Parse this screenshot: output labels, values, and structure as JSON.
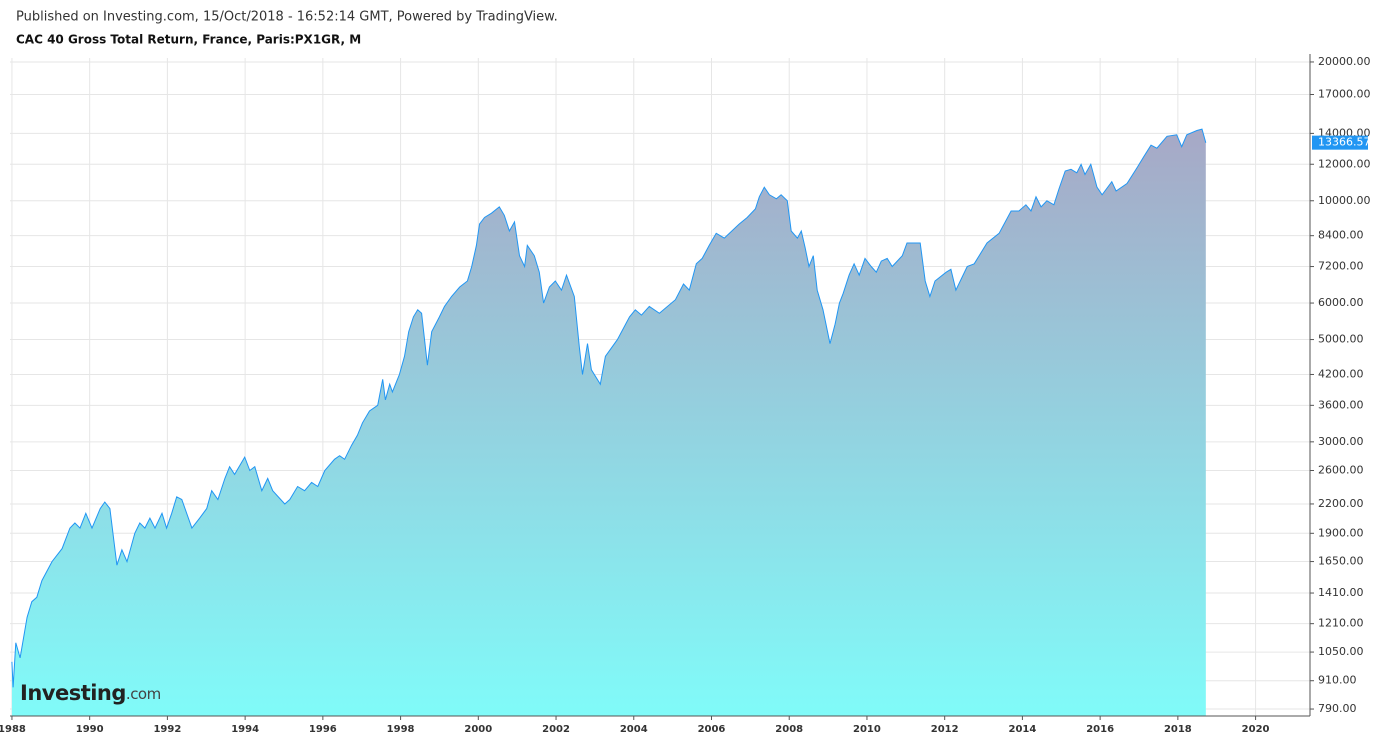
{
  "header": {
    "published": "Published on Investing.com, 15/Oct/2018 - 16:52:14 GMT, Powered by TradingView.",
    "title": "CAC 40 Gross Total Return, France, Paris:PX1GR, M"
  },
  "watermark": {
    "brand": "Investing",
    "suffix": ".com"
  },
  "chart_data": {
    "type": "area",
    "title": "CAC 40 Gross Total Return, France, Paris:PX1GR, M",
    "x": [
      1988.0,
      1988.03,
      1988.1,
      1988.21,
      1988.39,
      1988.51,
      1988.64,
      1988.77,
      1989.03,
      1989.29,
      1989.49,
      1989.62,
      1989.75,
      1989.9,
      1990.06,
      1990.27,
      1990.39,
      1990.52,
      1990.7,
      1990.83,
      1990.96,
      1991.16,
      1991.29,
      1991.42,
      1991.55,
      1991.68,
      1991.86,
      1991.98,
      1992.11,
      1992.24,
      1992.37,
      1992.63,
      1992.83,
      1993.01,
      1993.14,
      1993.3,
      1993.48,
      1993.6,
      1993.73,
      1993.99,
      1994.12,
      1994.25,
      1994.43,
      1994.58,
      1994.71,
      1995.02,
      1995.15,
      1995.35,
      1995.53,
      1995.71,
      1995.87,
      1996.05,
      1996.3,
      1996.43,
      1996.56,
      1996.74,
      1996.89,
      1997.02,
      1997.2,
      1997.41,
      1997.54,
      1997.61,
      1997.72,
      1997.79,
      1997.97,
      1998.1,
      1998.21,
      1998.33,
      1998.44,
      1998.54,
      1998.69,
      1998.8,
      1999.0,
      1999.13,
      1999.31,
      1999.52,
      1999.72,
      1999.83,
      1999.95,
      2000.03,
      2000.16,
      2000.34,
      2000.54,
      2000.67,
      2000.8,
      2000.93,
      2001.06,
      2001.19,
      2001.26,
      2001.44,
      2001.57,
      2001.68,
      2001.83,
      2001.98,
      2002.14,
      2002.27,
      2002.47,
      2002.6,
      2002.68,
      2002.81,
      2002.91,
      2003.14,
      2003.27,
      2003.58,
      2003.89,
      2004.04,
      2004.2,
      2004.4,
      2004.66,
      2005.07,
      2005.28,
      2005.43,
      2005.61,
      2005.76,
      2005.94,
      2006.12,
      2006.33,
      2006.71,
      2006.92,
      2007.13,
      2007.23,
      2007.36,
      2007.49,
      2007.67,
      2007.79,
      2007.95,
      2008.05,
      2008.21,
      2008.31,
      2008.41,
      2008.51,
      2008.62,
      2008.72,
      2008.87,
      2009.05,
      2009.18,
      2009.29,
      2009.39,
      2009.54,
      2009.67,
      2009.8,
      2009.95,
      2010.11,
      2010.24,
      2010.37,
      2010.52,
      2010.65,
      2010.91,
      2011.03,
      2011.37,
      2011.5,
      2011.62,
      2011.75,
      2012.04,
      2012.16,
      2012.29,
      2012.58,
      2012.76,
      2013.09,
      2013.4,
      2013.71,
      2013.91,
      2014.09,
      2014.22,
      2014.35,
      2014.48,
      2014.63,
      2014.81,
      2014.94,
      2015.1,
      2015.25,
      2015.4,
      2015.51,
      2015.61,
      2015.76,
      2015.92,
      2016.05,
      2016.3,
      2016.41,
      2016.69,
      2016.95,
      2017.13,
      2017.31,
      2017.46,
      2017.72,
      2017.97,
      2018.1,
      2018.23,
      2018.49,
      2018.62,
      2018.72
    ],
    "values": [
      1000,
      880,
      1100,
      1020,
      1250,
      1350,
      1380,
      1500,
      1650,
      1760,
      1950,
      2000,
      1950,
      2100,
      1950,
      2150,
      2220,
      2150,
      1620,
      1750,
      1650,
      1900,
      2000,
      1950,
      2050,
      1950,
      2100,
      1950,
      2100,
      2280,
      2250,
      1950,
      2050,
      2150,
      2350,
      2250,
      2500,
      2650,
      2550,
      2780,
      2600,
      2650,
      2350,
      2500,
      2350,
      2200,
      2250,
      2400,
      2350,
      2450,
      2400,
      2600,
      2750,
      2800,
      2750,
      2950,
      3100,
      3300,
      3500,
      3600,
      4100,
      3700,
      4000,
      3850,
      4200,
      4600,
      5200,
      5600,
      5800,
      5700,
      4400,
      5200,
      5600,
      5900,
      6200,
      6500,
      6700,
      7200,
      8000,
      8900,
      9200,
      9400,
      9700,
      9300,
      8600,
      9000,
      7600,
      7200,
      8000,
      7600,
      7000,
      6000,
      6500,
      6700,
      6400,
      6900,
      6200,
      4800,
      4200,
      4900,
      4300,
      4000,
      4600,
      5000,
      5600,
      5800,
      5650,
      5900,
      5700,
      6100,
      6600,
      6400,
      7300,
      7500,
      8000,
      8500,
      8300,
      8900,
      9200,
      9600,
      10200,
      10700,
      10300,
      10100,
      10300,
      10000,
      8600,
      8300,
      8600,
      7900,
      7200,
      7600,
      6400,
      5800,
      4900,
      5400,
      6000,
      6300,
      6900,
      7300,
      6900,
      7500,
      7200,
      7000,
      7400,
      7500,
      7200,
      7600,
      8100,
      8100,
      6700,
      6200,
      6700,
      7000,
      7100,
      6400,
      7200,
      7300,
      8100,
      8500,
      9500,
      9500,
      9800,
      9500,
      10200,
      9700,
      10000,
      9800,
      10600,
      11600,
      11700,
      11500,
      12000,
      11400,
      12000,
      10700,
      10300,
      11000,
      10500,
      10900,
      11800,
      12500,
      13200,
      13000,
      13800,
      13900,
      13100,
      13900,
      14200,
      14300,
      13366.57
    ],
    "color": "#2196f3",
    "fill_top": "#a7a8c6",
    "fill_bottom": "#80fbf9",
    "log_scale": true,
    "grid": true,
    "xlim": [
      1987.95,
      2021.4
    ],
    "xticks": [
      1988,
      1990,
      1992,
      1994,
      1996,
      1998,
      2000,
      2002,
      2004,
      2006,
      2008,
      2010,
      2012,
      2014,
      2016,
      2018,
      2020
    ],
    "ylim": [
      763,
      20400
    ],
    "yticks": [
      {
        "value": 790,
        "label": "790.00"
      },
      {
        "value": 910,
        "label": "910.00"
      },
      {
        "value": 1050,
        "label": "1050.00"
      },
      {
        "value": 1210,
        "label": "1210.00"
      },
      {
        "value": 1410,
        "label": "1410.00"
      },
      {
        "value": 1650,
        "label": "1650.00"
      },
      {
        "value": 1900,
        "label": "1900.00"
      },
      {
        "value": 2200,
        "label": "2200.00"
      },
      {
        "value": 2600,
        "label": "2600.00"
      },
      {
        "value": 3000,
        "label": "3000.00"
      },
      {
        "value": 3600,
        "label": "3600.00"
      },
      {
        "value": 4200,
        "label": "4200.00"
      },
      {
        "value": 5000,
        "label": "5000.00"
      },
      {
        "value": 6000,
        "label": "6000.00"
      },
      {
        "value": 7200,
        "label": "7200.00"
      },
      {
        "value": 8400,
        "label": "8400.00"
      },
      {
        "value": 10000,
        "label": "10000.00"
      },
      {
        "value": 12000,
        "label": "12000.00"
      },
      {
        "value": 14000,
        "label": "14000.00"
      },
      {
        "value": 17000,
        "label": "17000.00"
      },
      {
        "value": 20000,
        "label": "20000.00"
      }
    ]
  }
}
